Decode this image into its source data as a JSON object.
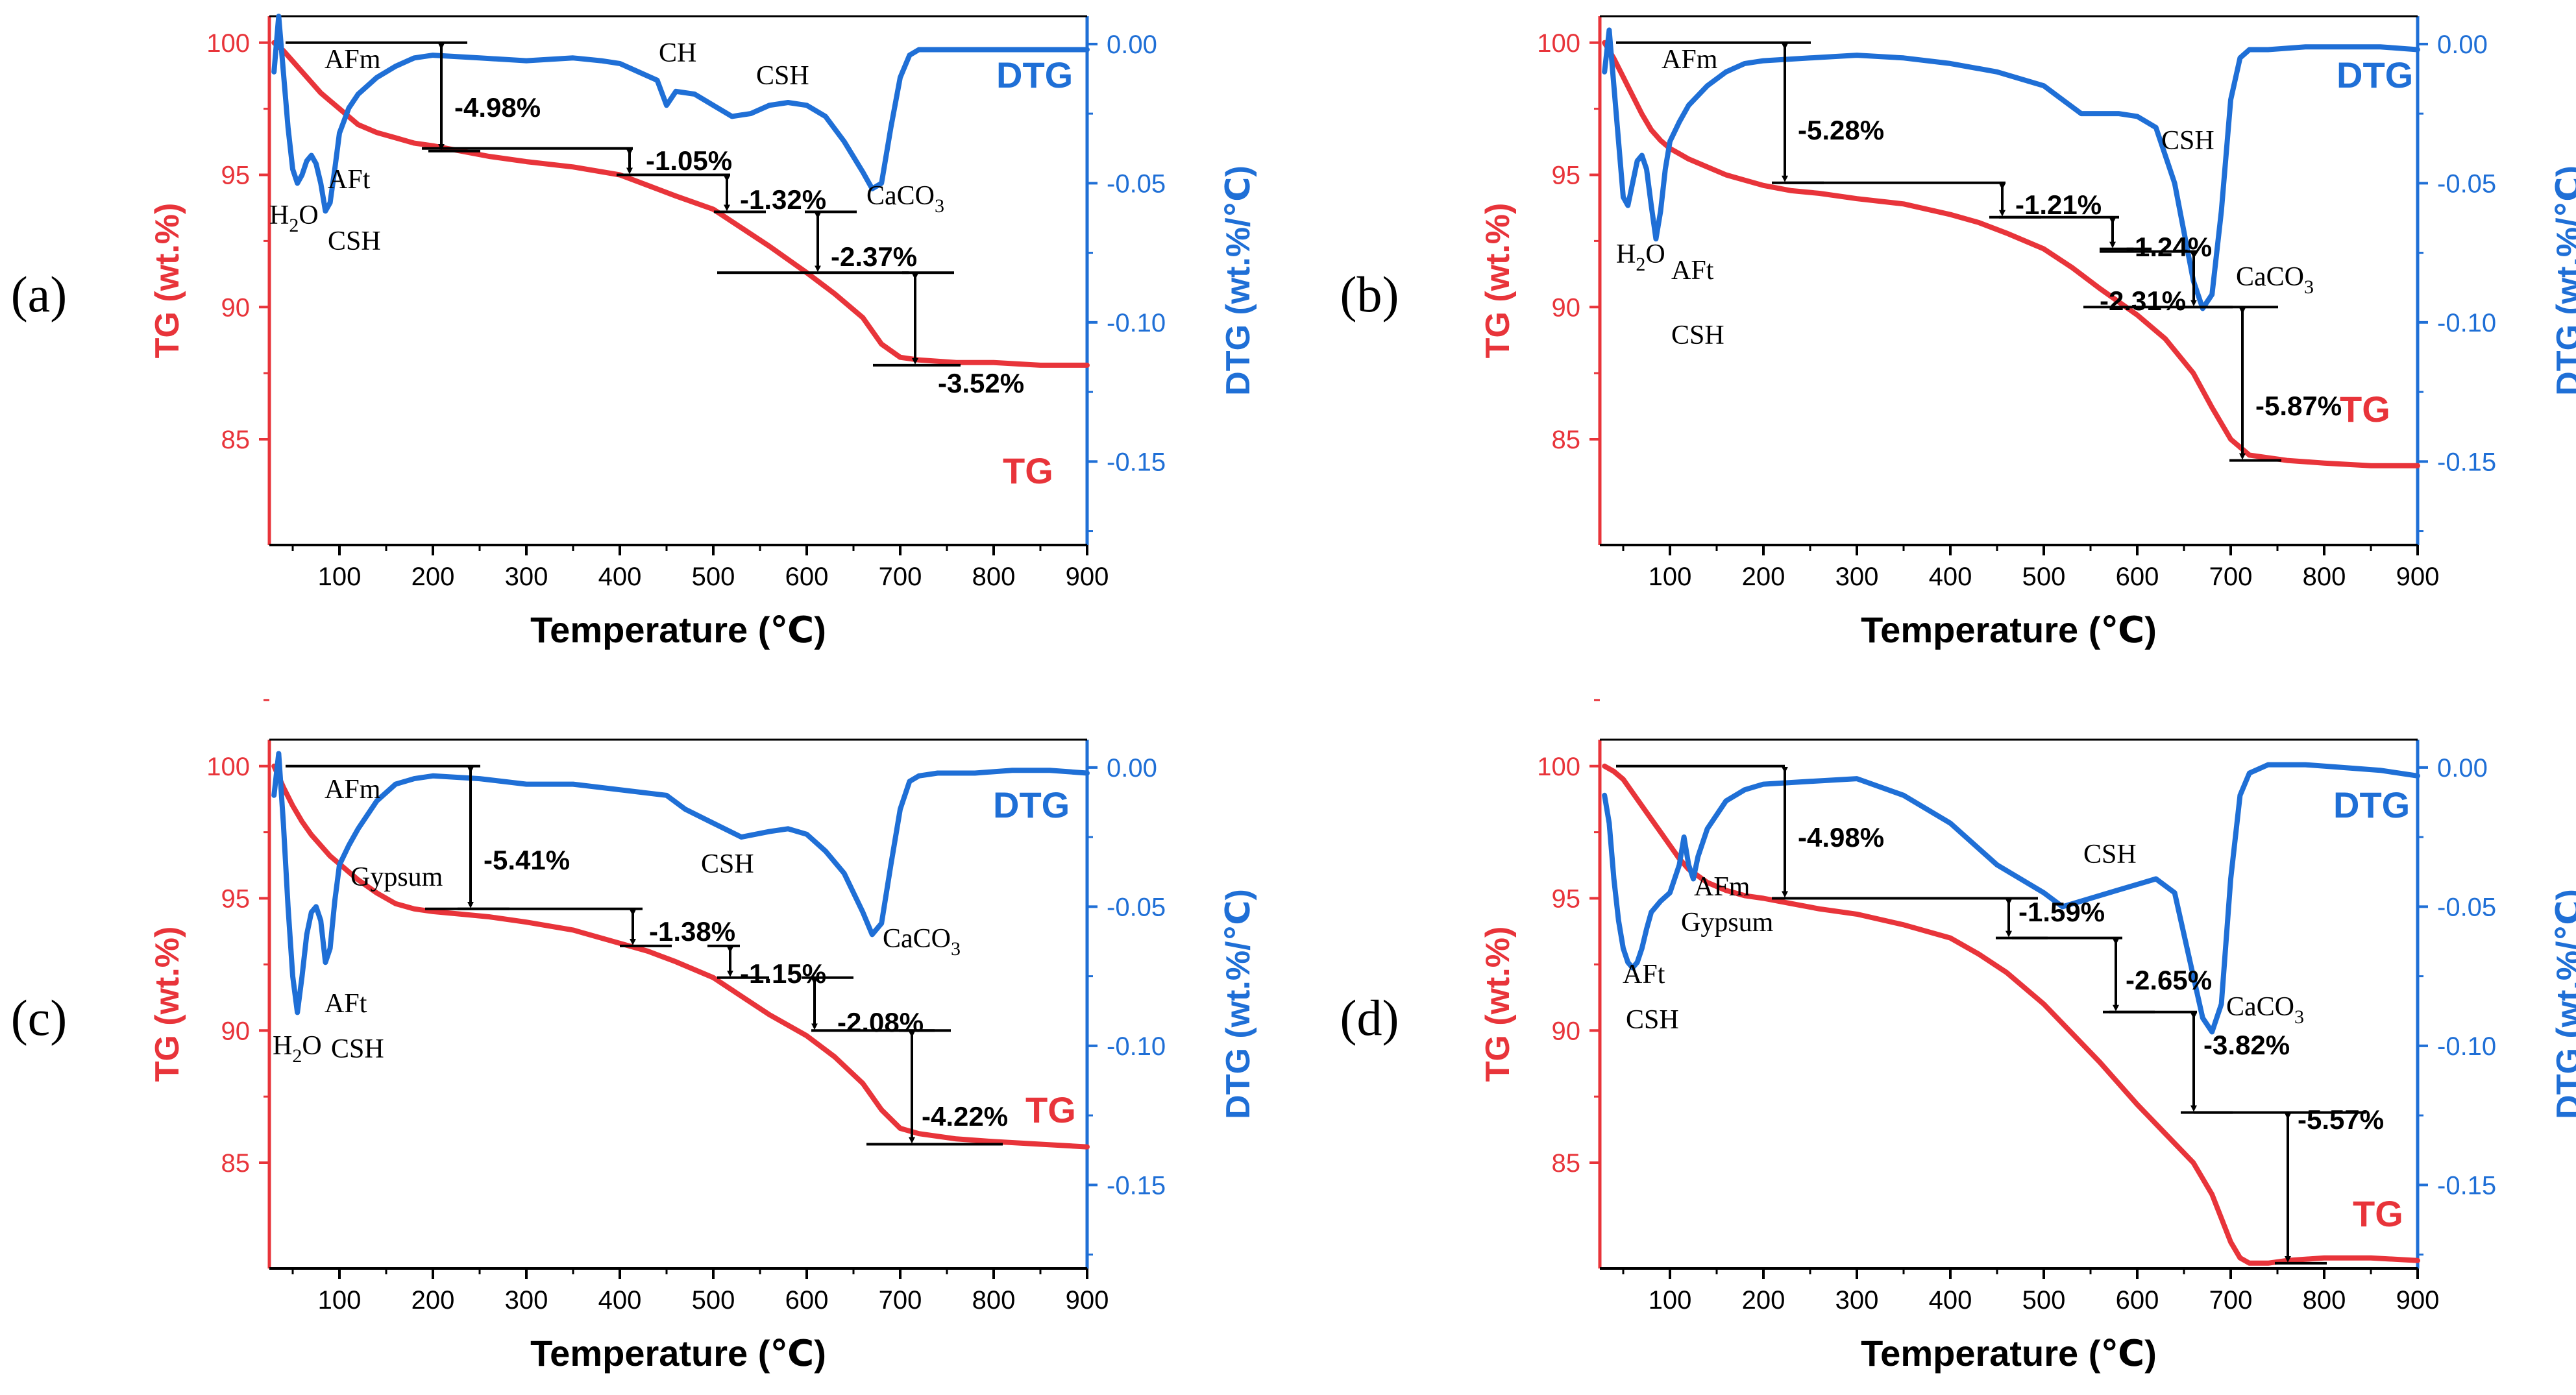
{
  "colors": {
    "tg": "#e8343a",
    "dtg": "#1f6fd6",
    "annotation": "#000000"
  },
  "axes": {
    "x_label": "Temperature (℃)",
    "y_left_label": "TG (wt.%)",
    "y_right_label": "DTG (wt.%/℃)",
    "x_ticks": [
      "100",
      "200",
      "300",
      "400",
      "500",
      "600",
      "700",
      "800",
      "900"
    ],
    "y_left_ticks": [
      "85",
      "90",
      "95",
      "100"
    ],
    "y_right_ticks": [
      "0.00",
      "-0.05",
      "-0.10",
      "-0.15"
    ]
  },
  "chart_data": [
    {
      "panel_label": "(a)",
      "type": "line",
      "xlabel": "Temperature (℃)",
      "ylabel": "TG (wt.%)",
      "y2label": "DTG (wt.%/℃)",
      "xlim": [
        25,
        900
      ],
      "ylim": [
        81,
        101
      ],
      "y2lim": [
        -0.18,
        0.01
      ],
      "legend": {
        "tg": "TG",
        "dtg": "DTG"
      },
      "series": [
        {
          "name": "TG",
          "axis": "left",
          "x": [
            30,
            40,
            50,
            60,
            70,
            80,
            90,
            100,
            110,
            120,
            140,
            160,
            180,
            200,
            230,
            260,
            300,
            350,
            400,
            430,
            460,
            500,
            530,
            560,
            600,
            630,
            660,
            680,
            700,
            720,
            760,
            800,
            850,
            900
          ],
          "values": [
            100,
            99.7,
            99.3,
            98.9,
            98.5,
            98.1,
            97.8,
            97.5,
            97.2,
            96.9,
            96.6,
            96.4,
            96.2,
            96.1,
            95.9,
            95.7,
            95.5,
            95.3,
            95.0,
            94.6,
            94.2,
            93.7,
            93.0,
            92.3,
            91.3,
            90.5,
            89.6,
            88.6,
            88.1,
            88.0,
            87.9,
            87.9,
            87.8,
            87.8
          ]
        },
        {
          "name": "DTG",
          "axis": "right",
          "x": [
            30,
            35,
            40,
            45,
            50,
            55,
            60,
            65,
            70,
            75,
            80,
            85,
            90,
            95,
            100,
            110,
            120,
            140,
            160,
            180,
            200,
            250,
            300,
            350,
            380,
            400,
            420,
            440,
            450,
            460,
            480,
            500,
            520,
            540,
            560,
            580,
            600,
            620,
            640,
            660,
            670,
            680,
            690,
            700,
            710,
            720,
            740,
            780,
            820,
            860,
            900
          ],
          "values": [
            -0.01,
            0.01,
            -0.01,
            -0.03,
            -0.045,
            -0.05,
            -0.047,
            -0.042,
            -0.04,
            -0.043,
            -0.05,
            -0.06,
            -0.057,
            -0.045,
            -0.032,
            -0.023,
            -0.018,
            -0.012,
            -0.008,
            -0.005,
            -0.004,
            -0.005,
            -0.006,
            -0.005,
            -0.006,
            -0.007,
            -0.01,
            -0.013,
            -0.022,
            -0.017,
            -0.018,
            -0.022,
            -0.026,
            -0.025,
            -0.022,
            -0.021,
            -0.022,
            -0.026,
            -0.035,
            -0.046,
            -0.052,
            -0.05,
            -0.03,
            -0.012,
            -0.004,
            -0.002,
            -0.002,
            -0.002,
            -0.002,
            -0.002,
            -0.002
          ]
        }
      ],
      "labels": [
        {
          "text": "AFm"
        },
        {
          "text": "CH"
        },
        {
          "text": "CSH"
        },
        {
          "text": "CSH"
        },
        {
          "text": "AFt"
        },
        {
          "text": "H",
          "sub": "2",
          "tail": "O"
        },
        {
          "text": "CaCO",
          "sub": "3",
          "tail": ""
        }
      ],
      "steps": [
        "-4.98%",
        "-1.05%",
        "-1.32%",
        "-2.37%",
        "-3.52%"
      ]
    },
    {
      "panel_label": "(b)",
      "type": "line",
      "xlabel": "Temperature (℃)",
      "ylabel": "TG (wt.%)",
      "y2label": "DTG (wt.%/℃)",
      "xlim": [
        25,
        900
      ],
      "ylim": [
        81,
        101
      ],
      "y2lim": [
        -0.18,
        0.01
      ],
      "legend": {
        "tg": "TG",
        "dtg": "DTG"
      },
      "series": [
        {
          "name": "TG",
          "axis": "left",
          "x": [
            30,
            40,
            50,
            60,
            70,
            80,
            90,
            100,
            110,
            120,
            140,
            160,
            180,
            200,
            230,
            260,
            300,
            350,
            400,
            430,
            460,
            500,
            530,
            560,
            600,
            630,
            660,
            680,
            700,
            720,
            760,
            800,
            850,
            900
          ],
          "values": [
            100,
            99.4,
            98.7,
            98.0,
            97.3,
            96.7,
            96.3,
            96.0,
            95.8,
            95.6,
            95.3,
            95.0,
            94.8,
            94.6,
            94.4,
            94.3,
            94.1,
            93.9,
            93.5,
            93.2,
            92.8,
            92.2,
            91.5,
            90.7,
            89.7,
            88.8,
            87.5,
            86.2,
            85.0,
            84.4,
            84.2,
            84.1,
            84.0,
            84.0
          ]
        },
        {
          "name": "DTG",
          "axis": "right",
          "x": [
            30,
            35,
            40,
            45,
            50,
            55,
            60,
            65,
            70,
            75,
            80,
            85,
            90,
            95,
            100,
            110,
            120,
            140,
            160,
            180,
            200,
            250,
            300,
            350,
            400,
            450,
            500,
            520,
            540,
            560,
            580,
            600,
            620,
            640,
            660,
            670,
            680,
            690,
            700,
            710,
            720,
            740,
            780,
            820,
            860,
            900
          ],
          "values": [
            -0.01,
            0.005,
            -0.015,
            -0.035,
            -0.055,
            -0.058,
            -0.05,
            -0.042,
            -0.04,
            -0.045,
            -0.058,
            -0.07,
            -0.06,
            -0.045,
            -0.035,
            -0.028,
            -0.022,
            -0.015,
            -0.01,
            -0.007,
            -0.006,
            -0.005,
            -0.004,
            -0.005,
            -0.007,
            -0.01,
            -0.015,
            -0.02,
            -0.025,
            -0.025,
            -0.025,
            -0.026,
            -0.03,
            -0.05,
            -0.085,
            -0.095,
            -0.09,
            -0.06,
            -0.02,
            -0.005,
            -0.002,
            -0.002,
            -0.001,
            -0.001,
            -0.001,
            -0.002
          ]
        }
      ],
      "labels": [
        {
          "text": "AFm"
        },
        {
          "text": "CSH"
        },
        {
          "text": "AFt"
        },
        {
          "text": "CSH"
        },
        {
          "text": "H",
          "sub": "2",
          "tail": "O"
        },
        {
          "text": "CaCO",
          "sub": "3",
          "tail": ""
        }
      ],
      "steps": [
        "-5.28%",
        "-1.21%",
        "-1.24%",
        "-2.31%",
        "-5.87%"
      ]
    },
    {
      "panel_label": "(c)",
      "type": "line",
      "xlabel": "Temperature (℃)",
      "ylabel": "TG (wt.%)",
      "y2label": "DTG (wt.%/℃)",
      "xlim": [
        25,
        900
      ],
      "ylim": [
        81,
        101
      ],
      "y2lim": [
        -0.18,
        0.01
      ],
      "legend": {
        "tg": "TG",
        "dtg": "DTG"
      },
      "series": [
        {
          "name": "TG",
          "axis": "left",
          "x": [
            30,
            40,
            50,
            60,
            70,
            80,
            90,
            100,
            110,
            120,
            140,
            160,
            180,
            200,
            230,
            260,
            300,
            350,
            400,
            430,
            460,
            500,
            530,
            560,
            600,
            630,
            660,
            680,
            700,
            720,
            760,
            800,
            850,
            900
          ],
          "values": [
            100,
            99.2,
            98.5,
            97.9,
            97.4,
            97.0,
            96.6,
            96.3,
            96.0,
            95.7,
            95.2,
            94.8,
            94.6,
            94.5,
            94.4,
            94.3,
            94.1,
            93.8,
            93.3,
            93.0,
            92.6,
            92.0,
            91.3,
            90.6,
            89.8,
            89.0,
            88.0,
            87.0,
            86.3,
            86.1,
            85.9,
            85.8,
            85.7,
            85.6
          ]
        },
        {
          "name": "DTG",
          "axis": "right",
          "x": [
            30,
            35,
            40,
            45,
            50,
            55,
            60,
            65,
            70,
            75,
            80,
            85,
            90,
            95,
            100,
            110,
            120,
            140,
            160,
            180,
            200,
            250,
            300,
            350,
            400,
            450,
            470,
            500,
            530,
            560,
            580,
            600,
            620,
            640,
            660,
            670,
            680,
            690,
            700,
            710,
            720,
            740,
            780,
            820,
            860,
            900
          ],
          "values": [
            -0.01,
            0.005,
            -0.02,
            -0.05,
            -0.075,
            -0.088,
            -0.075,
            -0.06,
            -0.052,
            -0.05,
            -0.055,
            -0.07,
            -0.065,
            -0.048,
            -0.035,
            -0.028,
            -0.022,
            -0.012,
            -0.006,
            -0.004,
            -0.003,
            -0.004,
            -0.006,
            -0.006,
            -0.008,
            -0.01,
            -0.015,
            -0.02,
            -0.025,
            -0.023,
            -0.022,
            -0.024,
            -0.03,
            -0.038,
            -0.052,
            -0.06,
            -0.056,
            -0.035,
            -0.015,
            -0.005,
            -0.003,
            -0.002,
            -0.002,
            -0.001,
            -0.001,
            -0.002
          ]
        }
      ],
      "labels": [
        {
          "text": "AFm"
        },
        {
          "text": "Gypsum"
        },
        {
          "text": "CSH"
        },
        {
          "text": "AFt"
        },
        {
          "text": "CSH"
        },
        {
          "text": "H",
          "sub": "2",
          "tail": "O"
        },
        {
          "text": "CaCO",
          "sub": "3",
          "tail": ""
        }
      ],
      "steps": [
        "-5.41%",
        "-1.38%",
        "-1.15%",
        "-2.08%",
        "-4.22%"
      ]
    },
    {
      "panel_label": "(d)",
      "type": "line",
      "xlabel": "Temperature (℃)",
      "ylabel": "TG (wt.%)",
      "y2label": "DTG (wt.%/℃)",
      "xlim": [
        25,
        900
      ],
      "ylim": [
        81,
        101
      ],
      "y2lim": [
        -0.18,
        0.01
      ],
      "legend": {
        "tg": "TG",
        "dtg": "DTG"
      },
      "series": [
        {
          "name": "TG",
          "axis": "left",
          "x": [
            30,
            40,
            50,
            60,
            70,
            80,
            90,
            100,
            110,
            120,
            140,
            160,
            180,
            200,
            230,
            260,
            300,
            350,
            400,
            430,
            460,
            500,
            530,
            560,
            600,
            630,
            660,
            680,
            700,
            710,
            720,
            740,
            760,
            800,
            850,
            900
          ],
          "values": [
            100,
            99.8,
            99.5,
            99.0,
            98.5,
            98.0,
            97.5,
            97.0,
            96.5,
            96.1,
            95.6,
            95.3,
            95.1,
            95.0,
            94.8,
            94.6,
            94.4,
            94.0,
            93.5,
            92.9,
            92.2,
            91.0,
            89.9,
            88.8,
            87.2,
            86.1,
            85.0,
            83.8,
            82.0,
            81.4,
            81.2,
            81.2,
            81.3,
            81.4,
            81.4,
            81.3
          ]
        },
        {
          "name": "DTG",
          "axis": "right",
          "x": [
            30,
            35,
            40,
            45,
            50,
            55,
            60,
            65,
            70,
            75,
            80,
            90,
            100,
            110,
            115,
            120,
            125,
            130,
            140,
            160,
            180,
            200,
            250,
            300,
            350,
            400,
            450,
            500,
            520,
            540,
            560,
            580,
            600,
            620,
            640,
            660,
            670,
            680,
            690,
            700,
            710,
            720,
            740,
            780,
            820,
            860,
            900
          ],
          "values": [
            -0.01,
            -0.02,
            -0.04,
            -0.055,
            -0.065,
            -0.07,
            -0.072,
            -0.07,
            -0.065,
            -0.058,
            -0.052,
            -0.048,
            -0.045,
            -0.035,
            -0.025,
            -0.035,
            -0.04,
            -0.032,
            -0.022,
            -0.012,
            -0.008,
            -0.006,
            -0.005,
            -0.004,
            -0.01,
            -0.02,
            -0.035,
            -0.045,
            -0.05,
            -0.048,
            -0.046,
            -0.044,
            -0.042,
            -0.04,
            -0.045,
            -0.075,
            -0.09,
            -0.095,
            -0.085,
            -0.04,
            -0.01,
            -0.002,
            0.001,
            0.001,
            0.0,
            -0.001,
            -0.003
          ]
        }
      ],
      "labels": [
        {
          "text": "CSH"
        },
        {
          "text": "AFm"
        },
        {
          "text": "Gypsum"
        },
        {
          "text": "AFt"
        },
        {
          "text": "CSH"
        },
        {
          "text": "CaCO",
          "sub": "3",
          "tail": ""
        }
      ],
      "steps": [
        "-4.98%",
        "-1.59%",
        "-2.65%",
        "-3.82%",
        "-5.57%"
      ]
    }
  ]
}
